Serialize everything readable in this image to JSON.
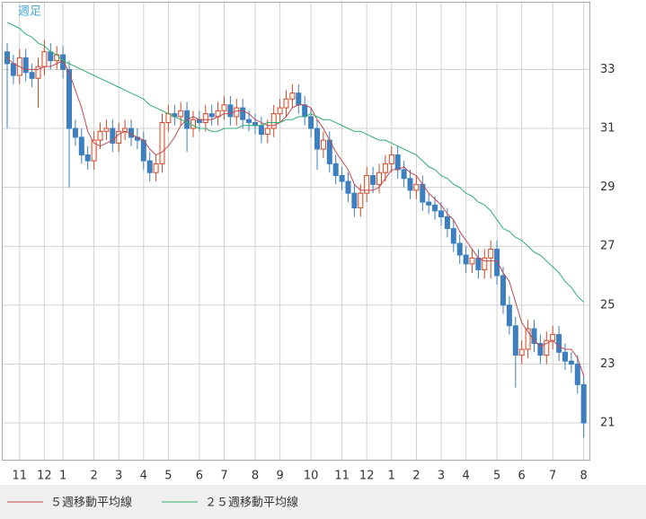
{
  "chart_data": {
    "type": "candlestick",
    "label": "週足",
    "categories": [
      null,
      null,
      "11",
      null,
      null,
      null,
      "12",
      null,
      null,
      "1",
      null,
      null,
      null,
      null,
      "2",
      null,
      null,
      null,
      "3",
      null,
      null,
      null,
      "4",
      null,
      null,
      null,
      "5",
      null,
      null,
      null,
      null,
      "6",
      null,
      null,
      null,
      "7",
      null,
      null,
      null,
      null,
      "8",
      null,
      null,
      null,
      "9",
      null,
      null,
      null,
      null,
      "10",
      null,
      null,
      null,
      null,
      "11",
      null,
      null,
      null,
      "12",
      null,
      null,
      null,
      "1",
      null,
      null,
      null,
      "2",
      null,
      null,
      null,
      "3",
      null,
      null,
      null,
      "4",
      null,
      null,
      null,
      null,
      "5",
      null,
      null,
      null,
      "6",
      null,
      null,
      null,
      null,
      "7",
      null,
      null,
      null,
      null,
      "8"
    ],
    "open": [
      33.6,
      33.2,
      32.8,
      33.4,
      32.9,
      32.7,
      33.1,
      33.6,
      33.3,
      33.5,
      33.0,
      31.0,
      30.7,
      30.1,
      29.9,
      30.6,
      30.9,
      31.0,
      30.5,
      30.9,
      31.0,
      30.7,
      30.6,
      29.9,
      29.5,
      29.8,
      31.2,
      31.5,
      31.4,
      31.6,
      31.0,
      31.3,
      31.2,
      31.5,
      31.4,
      31.6,
      31.8,
      31.4,
      31.7,
      31.3,
      31.2,
      31.1,
      30.8,
      31.0,
      31.5,
      31.7,
      32.0,
      32.2,
      31.8,
      31.4,
      31.0,
      30.3,
      30.6,
      29.8,
      29.4,
      29.2,
      28.8,
      28.3,
      28.8,
      29.4,
      29.1,
      29.5,
      29.8,
      30.1,
      29.6,
      29.3,
      28.9,
      29.1,
      28.5,
      28.4,
      28.2,
      28.0,
      27.6,
      27.1,
      26.7,
      26.4,
      26.6,
      26.2,
      26.6,
      26.9,
      26.0,
      25.0,
      24.3,
      23.3,
      23.5,
      24.2,
      23.7,
      23.3,
      23.8,
      24.0,
      23.4,
      23.1,
      23.0,
      22.3
    ],
    "high": [
      33.9,
      33.5,
      33.7,
      33.7,
      33.2,
      33.4,
      34.0,
      33.9,
      33.8,
      33.8,
      33.3,
      31.3,
      31.0,
      30.4,
      30.9,
      31.2,
      31.3,
      31.3,
      31.2,
      31.3,
      31.3,
      31.0,
      30.9,
      30.2,
      30.1,
      31.5,
      31.8,
      31.8,
      31.9,
      31.9,
      31.6,
      31.6,
      31.8,
      31.8,
      31.9,
      32.1,
      32.1,
      32.0,
      32.0,
      31.6,
      31.5,
      31.4,
      31.3,
      31.8,
      32.0,
      32.3,
      32.5,
      32.5,
      32.1,
      31.7,
      31.3,
      30.9,
      30.9,
      30.1,
      29.7,
      29.5,
      29.1,
      29.1,
      29.7,
      29.7,
      29.8,
      30.1,
      30.4,
      30.4,
      29.9,
      29.6,
      29.4,
      29.4,
      28.8,
      28.7,
      28.5,
      28.3,
      27.9,
      27.4,
      27.0,
      26.9,
      26.9,
      26.9,
      27.2,
      27.2,
      26.3,
      25.3,
      24.6,
      23.8,
      24.5,
      24.5,
      24.0,
      24.1,
      24.3,
      24.3,
      23.7,
      23.4,
      23.3,
      22.6
    ],
    "low": [
      31.0,
      32.5,
      32.5,
      32.6,
      32.4,
      31.7,
      32.8,
      33.0,
      33.0,
      32.7,
      29.0,
      30.4,
      29.8,
      29.6,
      29.6,
      30.3,
      30.6,
      30.2,
      30.2,
      30.6,
      30.4,
      30.3,
      29.6,
      29.2,
      29.2,
      29.5,
      30.9,
      31.1,
      31.1,
      30.2,
      30.7,
      30.9,
      30.9,
      31.1,
      31.1,
      31.3,
      31.1,
      31.1,
      31.0,
      30.9,
      30.8,
      30.5,
      30.5,
      30.7,
      31.2,
      31.4,
      31.7,
      31.5,
      31.1,
      30.7,
      29.6,
      30.0,
      29.5,
      29.1,
      28.9,
      28.5,
      28.0,
      28.0,
      28.5,
      28.8,
      28.8,
      29.2,
      29.5,
      29.3,
      29.0,
      28.6,
      28.6,
      28.2,
      28.1,
      27.9,
      27.7,
      27.3,
      26.8,
      26.4,
      26.1,
      26.1,
      25.9,
      25.9,
      25.9,
      25.7,
      24.7,
      24.0,
      22.2,
      23.0,
      23.2,
      23.4,
      23.0,
      23.0,
      23.5,
      23.1,
      22.8,
      22.7,
      22.0,
      20.5
    ],
    "close": [
      33.2,
      32.8,
      33.4,
      32.9,
      32.7,
      33.1,
      33.6,
      33.3,
      33.5,
      33.0,
      31.0,
      30.7,
      30.1,
      29.9,
      30.6,
      30.9,
      31.0,
      30.5,
      30.9,
      31.0,
      30.7,
      30.6,
      29.9,
      29.5,
      29.8,
      31.2,
      31.5,
      31.4,
      31.6,
      31.0,
      31.3,
      31.2,
      31.5,
      31.4,
      31.6,
      31.8,
      31.4,
      31.7,
      31.3,
      31.2,
      31.1,
      30.8,
      31.0,
      31.5,
      31.7,
      32.0,
      32.2,
      31.8,
      31.4,
      31.0,
      30.3,
      30.6,
      29.8,
      29.4,
      29.2,
      28.8,
      28.3,
      28.8,
      29.4,
      29.1,
      29.5,
      29.8,
      30.1,
      29.6,
      29.3,
      28.9,
      29.1,
      28.5,
      28.4,
      28.2,
      28.0,
      27.6,
      27.1,
      26.7,
      26.4,
      26.6,
      26.2,
      26.6,
      26.9,
      26.0,
      25.0,
      24.3,
      23.3,
      23.5,
      24.2,
      23.7,
      23.3,
      23.8,
      24.0,
      23.4,
      23.1,
      23.0,
      22.3,
      21.0
    ],
    "up_color": "#d04a2a",
    "down_color": "#3d7fbf",
    "series": [
      {
        "name": "５週移動平均線",
        "color": "#c0484f",
        "values": [
          33.4,
          33.2,
          33.1,
          33.0,
          33.0,
          33.0,
          33.1,
          33.1,
          33.2,
          33.3,
          32.9,
          32.3,
          31.7,
          30.9,
          30.5,
          30.4,
          30.5,
          30.6,
          30.8,
          30.9,
          30.8,
          30.7,
          30.6,
          30.3,
          30.1,
          30.2,
          30.4,
          30.7,
          31.1,
          31.3,
          31.4,
          31.3,
          31.3,
          31.3,
          31.4,
          31.5,
          31.5,
          31.6,
          31.6,
          31.5,
          31.3,
          31.2,
          31.1,
          31.1,
          31.2,
          31.4,
          31.7,
          31.8,
          31.8,
          31.7,
          31.3,
          31.0,
          30.6,
          30.2,
          29.9,
          29.6,
          29.1,
          28.9,
          28.9,
          28.9,
          29.0,
          29.3,
          29.6,
          29.6,
          29.7,
          29.5,
          29.4,
          29.1,
          28.8,
          28.6,
          28.4,
          28.1,
          27.9,
          27.5,
          27.2,
          26.9,
          26.6,
          26.5,
          26.5,
          26.5,
          26.1,
          25.8,
          25.1,
          24.4,
          24.1,
          23.8,
          23.6,
          23.7,
          23.8,
          23.6,
          23.5,
          23.5,
          23.2,
          22.6
        ]
      },
      {
        "name": "２５週移動平均線",
        "color": "#2fae6e",
        "values": [
          34.6,
          34.5,
          34.4,
          34.2,
          34.1,
          33.9,
          33.8,
          33.6,
          33.5,
          33.3,
          33.2,
          33.1,
          33.0,
          32.9,
          32.8,
          32.7,
          32.6,
          32.5,
          32.4,
          32.3,
          32.2,
          32.1,
          32.0,
          31.8,
          31.7,
          31.6,
          31.5,
          31.4,
          31.3,
          31.2,
          31.1,
          31.0,
          31.0,
          30.9,
          30.9,
          31.0,
          31.0,
          31.0,
          31.1,
          31.1,
          31.1,
          31.1,
          31.2,
          31.2,
          31.2,
          31.3,
          31.3,
          31.4,
          31.4,
          31.5,
          31.4,
          31.3,
          31.3,
          31.2,
          31.1,
          31.0,
          30.9,
          30.9,
          30.8,
          30.7,
          30.6,
          30.6,
          30.5,
          30.4,
          30.3,
          30.2,
          30.1,
          29.9,
          29.7,
          29.6,
          29.4,
          29.3,
          29.1,
          29.0,
          28.8,
          28.7,
          28.5,
          28.4,
          28.2,
          27.9,
          27.6,
          27.5,
          27.3,
          27.2,
          27.0,
          26.8,
          26.7,
          26.5,
          26.3,
          26.1,
          25.8,
          25.6,
          25.3,
          25.1
        ]
      }
    ],
    "ylim": [
      19.75,
      35.3
    ],
    "yticks": [
      21,
      23,
      25,
      27,
      29,
      31,
      33
    ],
    "grid": true,
    "y_axis_side": "right"
  }
}
